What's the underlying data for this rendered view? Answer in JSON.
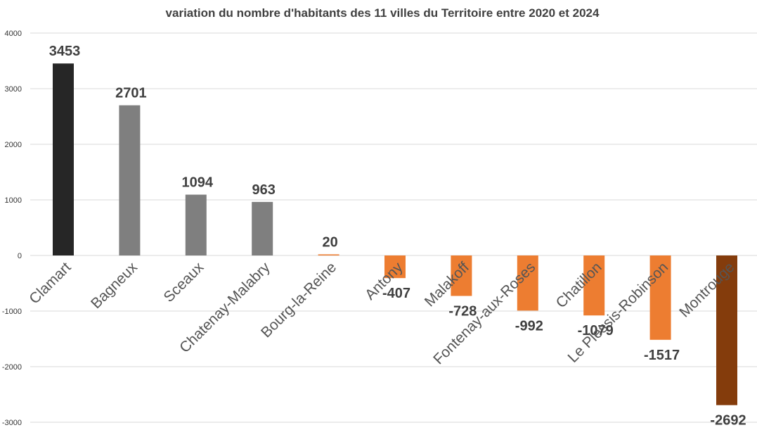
{
  "chart_data": {
    "type": "bar",
    "title": "variation du nombre d'habitants des 11 villes du Territoire entre 2020 et 2024",
    "categories": [
      "Clamart",
      "Bagneux",
      "Sceaux",
      "Chatenay-Malabry",
      "Bourg-la-Reine",
      "Antony",
      "Malakoff",
      "Fontenay-aux-Roses",
      "Chatillon",
      "Le Plessis-Robinson",
      "Montrouge"
    ],
    "values": [
      3453,
      2701,
      1094,
      963,
      20,
      -407,
      -728,
      -992,
      -1079,
      -1517,
      -2692
    ],
    "value_labels": [
      "3453",
      "2701",
      "1094",
      "963",
      "20",
      "-407",
      "-728",
      "-992",
      "-1079",
      "-1517",
      "-2692"
    ],
    "colors": [
      "#262626",
      "#7f7f7f",
      "#7f7f7f",
      "#7f7f7f",
      "#ed7d31",
      "#ed7d31",
      "#ed7d31",
      "#ed7d31",
      "#ed7d31",
      "#ed7d31",
      "#843c0c"
    ],
    "ylim": [
      -3000,
      4000
    ],
    "yticks": [
      4000,
      3000,
      2000,
      1000,
      0,
      -1000,
      -2000,
      -3000
    ],
    "ytick_labels": [
      "4000",
      "3000",
      "2000",
      "1000",
      "0",
      "-1000",
      "-2000",
      "-3000"
    ],
    "grid": true,
    "legend": "none"
  }
}
